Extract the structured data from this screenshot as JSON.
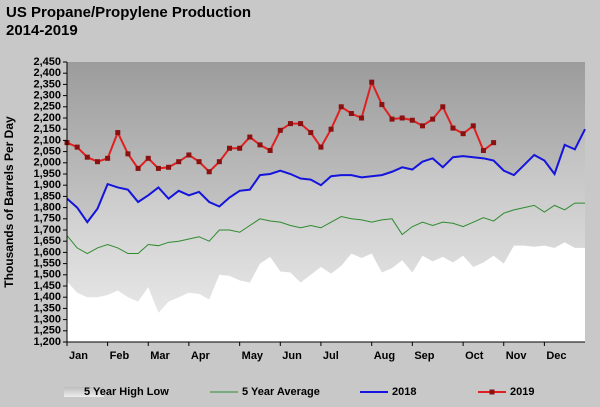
{
  "chart_data": {
    "type": "line",
    "title": "US Propane/Propylene Production",
    "subtitle": "2014-2019",
    "y_label": "Thousands of Barrels Per Day",
    "x": [
      0,
      1,
      2,
      3,
      4,
      5,
      6,
      7,
      8,
      9,
      10,
      11,
      12,
      13,
      14,
      15,
      16,
      17,
      18,
      19,
      20,
      21,
      22,
      23,
      24,
      25,
      26,
      27,
      28,
      29,
      30,
      31,
      32,
      33,
      34,
      35,
      36,
      37,
      38,
      39,
      40,
      41,
      42,
      43,
      44,
      45,
      46,
      47,
      48,
      49,
      50,
      51
    ],
    "xlim": [
      0,
      51
    ],
    "xticks": [
      {
        "value": 0,
        "label": "Jan"
      },
      {
        "value": 4,
        "label": "Feb"
      },
      {
        "value": 8,
        "label": "Mar"
      },
      {
        "value": 12,
        "label": "Apr"
      },
      {
        "value": 17,
        "label": "May"
      },
      {
        "value": 21,
        "label": "Jun"
      },
      {
        "value": 25,
        "label": "Jul"
      },
      {
        "value": 30,
        "label": "Aug"
      },
      {
        "value": 34,
        "label": "Sep"
      },
      {
        "value": 39,
        "label": "Oct"
      },
      {
        "value": 43,
        "label": "Nov"
      },
      {
        "value": 47,
        "label": "Dec"
      }
    ],
    "ylim": [
      1200,
      2450
    ],
    "yticks": [
      {
        "value": 1200,
        "label": "1,200"
      },
      {
        "value": 1250,
        "label": "1,250"
      },
      {
        "value": 1300,
        "label": "1,300"
      },
      {
        "value": 1350,
        "label": "1,350"
      },
      {
        "value": 1400,
        "label": "1,400"
      },
      {
        "value": 1450,
        "label": "1,450"
      },
      {
        "value": 1500,
        "label": "1,500"
      },
      {
        "value": 1550,
        "label": "1,550"
      },
      {
        "value": 1600,
        "label": "1,600"
      },
      {
        "value": 1650,
        "label": "1,650"
      },
      {
        "value": 1700,
        "label": "1,700"
      },
      {
        "value": 1750,
        "label": "1,750"
      },
      {
        "value": 1800,
        "label": "1,800"
      },
      {
        "value": 1850,
        "label": "1,850"
      },
      {
        "value": 1900,
        "label": "1,900"
      },
      {
        "value": 1950,
        "label": "1,950"
      },
      {
        "value": 2000,
        "label": "2,000"
      },
      {
        "value": 2050,
        "label": "2,050"
      },
      {
        "value": 2100,
        "label": "2,100"
      },
      {
        "value": 2150,
        "label": "2,150"
      },
      {
        "value": 2200,
        "label": "2,200"
      },
      {
        "value": 2250,
        "label": "2,250"
      },
      {
        "value": 2300,
        "label": "2,300"
      },
      {
        "value": 2350,
        "label": "2,350"
      },
      {
        "value": 2400,
        "label": "2,400"
      },
      {
        "value": 2450,
        "label": "2,450"
      }
    ],
    "grid": false,
    "legend": "bottom",
    "series": [
      {
        "name": "5 Year High Low",
        "color": "#e4e4e4",
        "high": [
          1840,
          1800,
          1735,
          1795,
          1905,
          1890,
          1880,
          1825,
          1855,
          1890,
          1840,
          1875,
          1855,
          1870,
          1825,
          1805,
          1845,
          1875,
          1880,
          1945,
          1950,
          1965,
          1950,
          1930,
          1925,
          1900,
          1940,
          1945,
          1945,
          1935,
          1940,
          1945,
          1960,
          1980,
          1970,
          2005,
          2020,
          1980,
          2025,
          2030,
          2025,
          2020,
          2010,
          1965,
          1945,
          1990,
          2035,
          2010,
          1950,
          2080,
          2060,
          2150
        ],
        "low": [
          1470,
          1420,
          1400,
          1400,
          1410,
          1430,
          1400,
          1380,
          1445,
          1330,
          1380,
          1400,
          1420,
          1415,
          1390,
          1500,
          1495,
          1475,
          1465,
          1550,
          1580,
          1515,
          1510,
          1465,
          1500,
          1535,
          1505,
          1540,
          1595,
          1575,
          1595,
          1510,
          1530,
          1565,
          1510,
          1585,
          1560,
          1580,
          1555,
          1585,
          1535,
          1555,
          1585,
          1550,
          1630,
          1630,
          1625,
          1630,
          1620,
          1645,
          1620,
          1620
        ]
      },
      {
        "name": "5 Year Average",
        "color": "#2e8b2e",
        "values": [
          1675,
          1620,
          1595,
          1620,
          1635,
          1620,
          1595,
          1595,
          1635,
          1630,
          1645,
          1650,
          1660,
          1670,
          1650,
          1700,
          1700,
          1690,
          1720,
          1750,
          1740,
          1735,
          1720,
          1710,
          1720,
          1710,
          1735,
          1760,
          1750,
          1745,
          1735,
          1745,
          1750,
          1680,
          1715,
          1735,
          1720,
          1735,
          1730,
          1715,
          1735,
          1755,
          1740,
          1775,
          1790,
          1800,
          1810,
          1780,
          1810,
          1790,
          1820,
          1820
        ]
      },
      {
        "name": "2018",
        "color": "#1414dc",
        "values": [
          1840,
          1800,
          1735,
          1795,
          1905,
          1890,
          1880,
          1825,
          1855,
          1890,
          1840,
          1875,
          1855,
          1870,
          1825,
          1805,
          1845,
          1875,
          1880,
          1945,
          1950,
          1965,
          1950,
          1930,
          1925,
          1900,
          1940,
          1945,
          1945,
          1935,
          1940,
          1945,
          1960,
          1980,
          1970,
          2005,
          2020,
          1980,
          2025,
          2030,
          2025,
          2020,
          2010,
          1965,
          1945,
          1990,
          2035,
          2010,
          1950,
          2080,
          2060,
          2150
        ]
      },
      {
        "name": "2019",
        "color": "#e02020",
        "marker_color": "#8b1010",
        "values": [
          2090,
          2070,
          2025,
          2005,
          2020,
          2135,
          2040,
          1975,
          2020,
          1975,
          1980,
          2005,
          2035,
          2005,
          1960,
          2005,
          2065,
          2065,
          2115,
          2080,
          2055,
          2145,
          2175,
          2175,
          2135,
          2070,
          2150,
          2250,
          2220,
          2200,
          2360,
          2260,
          2195,
          2200,
          2190,
          2165,
          2195,
          2250,
          2155,
          2130,
          2165,
          2055,
          2090,
          null,
          null,
          null,
          null,
          null,
          null,
          null,
          null,
          null
        ]
      }
    ]
  }
}
